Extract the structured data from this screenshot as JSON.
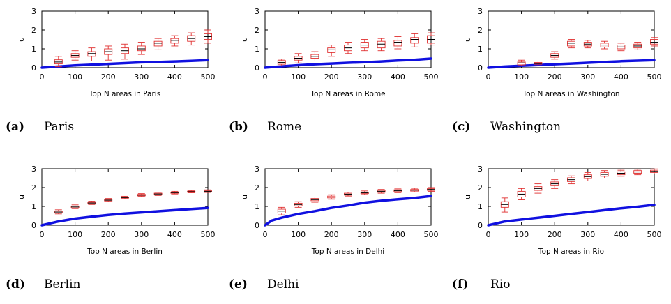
{
  "chart_data": [
    {
      "type": "box-line",
      "caption_label": "(a)",
      "caption_text": "Paris",
      "xlabel": "Top N areas in Paris",
      "ylabel": "u",
      "xlim": [
        0,
        500
      ],
      "ylim": [
        0,
        3
      ],
      "xticks": [
        "0",
        "100",
        "200",
        "300",
        "400",
        "500"
      ],
      "yticks": [
        "0",
        "1",
        "2",
        "3"
      ],
      "line": {
        "x": [
          0,
          50,
          100,
          150,
          200,
          250,
          300,
          350,
          400,
          450,
          500
        ],
        "y": [
          0,
          0.06,
          0.12,
          0.16,
          0.2,
          0.24,
          0.28,
          0.3,
          0.33,
          0.36,
          0.4
        ]
      },
      "boxes": [
        {
          "x": 50,
          "wl": 0.05,
          "q1": 0.2,
          "med": 0.3,
          "q3": 0.42,
          "wh": 0.6
        },
        {
          "x": 100,
          "wl": 0.4,
          "q1": 0.55,
          "med": 0.65,
          "q3": 0.75,
          "wh": 0.9
        },
        {
          "x": 150,
          "wl": 0.35,
          "q1": 0.6,
          "med": 0.75,
          "q3": 0.85,
          "wh": 1.05
        },
        {
          "x": 200,
          "wl": 0.4,
          "q1": 0.7,
          "med": 0.85,
          "q3": 1.0,
          "wh": 1.15
        },
        {
          "x": 250,
          "wl": 0.45,
          "q1": 0.75,
          "med": 0.9,
          "q3": 1.05,
          "wh": 1.25
        },
        {
          "x": 300,
          "wl": 0.7,
          "q1": 0.9,
          "med": 1.0,
          "q3": 1.15,
          "wh": 1.35
        },
        {
          "x": 350,
          "wl": 0.95,
          "q1": 1.15,
          "med": 1.3,
          "q3": 1.4,
          "wh": 1.55
        },
        {
          "x": 400,
          "wl": 1.15,
          "q1": 1.3,
          "med": 1.45,
          "q3": 1.55,
          "wh": 1.7
        },
        {
          "x": 450,
          "wl": 1.2,
          "q1": 1.4,
          "med": 1.55,
          "q3": 1.7,
          "wh": 1.85
        },
        {
          "x": 500,
          "wl": 1.3,
          "q1": 1.5,
          "med": 1.65,
          "q3": 1.8,
          "wh": 2.0
        }
      ]
    },
    {
      "type": "box-line",
      "caption_label": "(b)",
      "caption_text": "Rome",
      "xlabel": "Top N areas in Rome",
      "ylabel": "u",
      "xlim": [
        0,
        500
      ],
      "ylim": [
        0,
        3
      ],
      "xticks": [
        "0",
        "100",
        "200",
        "300",
        "400",
        "500"
      ],
      "yticks": [
        "0",
        "1",
        "2",
        "3"
      ],
      "line": {
        "x": [
          0,
          50,
          100,
          150,
          200,
          250,
          300,
          350,
          400,
          450,
          500
        ],
        "y": [
          0,
          0.07,
          0.13,
          0.18,
          0.22,
          0.26,
          0.29,
          0.33,
          0.38,
          0.42,
          0.48
        ]
      },
      "boxes": [
        {
          "x": 50,
          "wl": 0.1,
          "q1": 0.18,
          "med": 0.28,
          "q3": 0.38,
          "wh": 0.45
        },
        {
          "x": 100,
          "wl": 0.25,
          "q1": 0.4,
          "med": 0.5,
          "q3": 0.6,
          "wh": 0.75
        },
        {
          "x": 150,
          "wl": 0.35,
          "q1": 0.5,
          "med": 0.6,
          "q3": 0.7,
          "wh": 0.85
        },
        {
          "x": 200,
          "wl": 0.6,
          "q1": 0.8,
          "med": 0.95,
          "q3": 1.05,
          "wh": 1.2
        },
        {
          "x": 250,
          "wl": 0.75,
          "q1": 0.9,
          "med": 1.05,
          "q3": 1.2,
          "wh": 1.35
        },
        {
          "x": 300,
          "wl": 0.9,
          "q1": 1.05,
          "med": 1.2,
          "q3": 1.35,
          "wh": 1.5
        },
        {
          "x": 350,
          "wl": 0.9,
          "q1": 1.05,
          "med": 1.25,
          "q3": 1.4,
          "wh": 1.55
        },
        {
          "x": 400,
          "wl": 1.0,
          "q1": 1.15,
          "med": 1.35,
          "q3": 1.45,
          "wh": 1.65
        },
        {
          "x": 450,
          "wl": 1.1,
          "q1": 1.3,
          "med": 1.5,
          "q3": 1.6,
          "wh": 1.8
        },
        {
          "x": 500,
          "wl": 1.2,
          "q1": 1.3,
          "med": 1.5,
          "q3": 1.7,
          "wh": 1.85
        }
      ]
    },
    {
      "type": "box-line",
      "caption_label": "(c)",
      "caption_text": "Washington",
      "xlabel": "Top N areas in Washington",
      "ylabel": "u",
      "xlim": [
        0,
        500
      ],
      "ylim": [
        0,
        3
      ],
      "xticks": [
        "0",
        "100",
        "200",
        "300",
        "400",
        "500"
      ],
      "yticks": [
        "0",
        "1",
        "2",
        "3"
      ],
      "line": {
        "x": [
          0,
          50,
          100,
          150,
          200,
          250,
          300,
          350,
          400,
          450,
          500
        ],
        "y": [
          0,
          0.06,
          0.1,
          0.14,
          0.18,
          0.22,
          0.26,
          0.3,
          0.34,
          0.37,
          0.4
        ]
      },
      "boxes": [
        {
          "x": 100,
          "wl": 0.1,
          "q1": 0.15,
          "med": 0.25,
          "q3": 0.3,
          "wh": 0.4
        },
        {
          "x": 150,
          "wl": 0.1,
          "q1": 0.18,
          "med": 0.22,
          "q3": 0.28,
          "wh": 0.35
        },
        {
          "x": 200,
          "wl": 0.45,
          "q1": 0.55,
          "med": 0.65,
          "q3": 0.75,
          "wh": 0.85
        },
        {
          "x": 250,
          "wl": 1.05,
          "q1": 1.15,
          "med": 1.3,
          "q3": 1.4,
          "wh": 1.5
        },
        {
          "x": 300,
          "wl": 1.05,
          "q1": 1.15,
          "med": 1.25,
          "q3": 1.35,
          "wh": 1.45
        },
        {
          "x": 350,
          "wl": 1.0,
          "q1": 1.1,
          "med": 1.2,
          "q3": 1.3,
          "wh": 1.4
        },
        {
          "x": 400,
          "wl": 0.9,
          "q1": 1.0,
          "med": 1.1,
          "q3": 1.2,
          "wh": 1.3
        },
        {
          "x": 450,
          "wl": 0.95,
          "q1": 1.05,
          "med": 1.15,
          "q3": 1.25,
          "wh": 1.35
        },
        {
          "x": 500,
          "wl": 1.15,
          "q1": 1.25,
          "med": 1.35,
          "q3": 1.5,
          "wh": 1.6
        }
      ]
    },
    {
      "type": "box-line",
      "caption_label": "(d)",
      "caption_text": "Berlin",
      "xlabel": "Top N areas in Berlin",
      "ylabel": "u",
      "xlim": [
        0,
        500
      ],
      "ylim": [
        0,
        3
      ],
      "xticks": [
        "0",
        "100",
        "200",
        "300",
        "400",
        "500"
      ],
      "yticks": [
        "0",
        "1",
        "2",
        "3"
      ],
      "line": {
        "x": [
          0,
          50,
          100,
          150,
          200,
          250,
          300,
          350,
          400,
          450,
          500
        ],
        "y": [
          0,
          0.2,
          0.35,
          0.45,
          0.55,
          0.62,
          0.68,
          0.74,
          0.8,
          0.86,
          0.92
        ]
      },
      "boxes": [
        {
          "x": 50,
          "wl": 0.6,
          "q1": 0.65,
          "med": 0.7,
          "q3": 0.75,
          "wh": 0.82
        },
        {
          "x": 100,
          "wl": 0.88,
          "q1": 0.92,
          "med": 0.97,
          "q3": 1.02,
          "wh": 1.08
        },
        {
          "x": 150,
          "wl": 1.1,
          "q1": 1.14,
          "med": 1.18,
          "q3": 1.22,
          "wh": 1.28
        },
        {
          "x": 200,
          "wl": 1.25,
          "q1": 1.29,
          "med": 1.33,
          "q3": 1.37,
          "wh": 1.42
        },
        {
          "x": 250,
          "wl": 1.4,
          "q1": 1.44,
          "med": 1.47,
          "q3": 1.5,
          "wh": 1.54
        },
        {
          "x": 300,
          "wl": 1.52,
          "q1": 1.56,
          "med": 1.6,
          "q3": 1.64,
          "wh": 1.68
        },
        {
          "x": 350,
          "wl": 1.58,
          "q1": 1.62,
          "med": 1.66,
          "q3": 1.7,
          "wh": 1.75
        },
        {
          "x": 400,
          "wl": 1.66,
          "q1": 1.7,
          "med": 1.73,
          "q3": 1.76,
          "wh": 1.8
        },
        {
          "x": 450,
          "wl": 1.72,
          "q1": 1.75,
          "med": 1.78,
          "q3": 1.81,
          "wh": 1.85
        },
        {
          "x": 500,
          "wl": 1.74,
          "q1": 1.77,
          "med": 1.8,
          "q3": 1.83,
          "wh": 1.88
        }
      ]
    },
    {
      "type": "box-line",
      "caption_label": "(e)",
      "caption_text": "Delhi",
      "xlabel": "Top N areas in Delhi",
      "ylabel": "u",
      "xlim": [
        0,
        500
      ],
      "ylim": [
        0,
        3
      ],
      "xticks": [
        "0",
        "100",
        "200",
        "300",
        "400",
        "500"
      ],
      "yticks": [
        "0",
        "1",
        "2",
        "3"
      ],
      "line": {
        "x": [
          0,
          20,
          50,
          100,
          150,
          200,
          250,
          300,
          350,
          400,
          450,
          500
        ],
        "y": [
          0,
          0.25,
          0.4,
          0.6,
          0.75,
          0.92,
          1.05,
          1.2,
          1.3,
          1.38,
          1.45,
          1.55
        ]
      },
      "boxes": [
        {
          "x": 50,
          "wl": 0.55,
          "q1": 0.65,
          "med": 0.75,
          "q3": 0.85,
          "wh": 0.95
        },
        {
          "x": 100,
          "wl": 0.95,
          "q1": 1.03,
          "med": 1.1,
          "q3": 1.17,
          "wh": 1.25
        },
        {
          "x": 150,
          "wl": 1.22,
          "q1": 1.3,
          "med": 1.36,
          "q3": 1.42,
          "wh": 1.5
        },
        {
          "x": 200,
          "wl": 1.38,
          "q1": 1.45,
          "med": 1.5,
          "q3": 1.55,
          "wh": 1.62
        },
        {
          "x": 250,
          "wl": 1.55,
          "q1": 1.6,
          "med": 1.65,
          "q3": 1.7,
          "wh": 1.76
        },
        {
          "x": 300,
          "wl": 1.63,
          "q1": 1.68,
          "med": 1.72,
          "q3": 1.76,
          "wh": 1.82
        },
        {
          "x": 350,
          "wl": 1.7,
          "q1": 1.75,
          "med": 1.8,
          "q3": 1.85,
          "wh": 1.9
        },
        {
          "x": 400,
          "wl": 1.73,
          "q1": 1.78,
          "med": 1.83,
          "q3": 1.88,
          "wh": 1.93
        },
        {
          "x": 450,
          "wl": 1.76,
          "q1": 1.81,
          "med": 1.86,
          "q3": 1.9,
          "wh": 1.96
        },
        {
          "x": 500,
          "wl": 1.8,
          "q1": 1.85,
          "med": 1.9,
          "q3": 1.94,
          "wh": 2.0
        }
      ]
    },
    {
      "type": "box-line",
      "caption_label": "(f)",
      "caption_text": "Rio",
      "xlabel": "Top N areas in Rio",
      "ylabel": "u",
      "xlim": [
        0,
        500
      ],
      "ylim": [
        0,
        3
      ],
      "xticks": [
        "0",
        "100",
        "200",
        "300",
        "400",
        "500"
      ],
      "yticks": [
        "0",
        "1",
        "2",
        "3"
      ],
      "line": {
        "x": [
          0,
          50,
          100,
          150,
          200,
          250,
          300,
          350,
          400,
          450,
          500
        ],
        "y": [
          0,
          0.2,
          0.3,
          0.4,
          0.5,
          0.6,
          0.7,
          0.8,
          0.9,
          0.98,
          1.08
        ]
      },
      "boxes": [
        {
          "x": 50,
          "wl": 0.7,
          "q1": 0.95,
          "med": 1.1,
          "q3": 1.25,
          "wh": 1.45
        },
        {
          "x": 100,
          "wl": 1.35,
          "q1": 1.5,
          "med": 1.65,
          "q3": 1.8,
          "wh": 1.95
        },
        {
          "x": 150,
          "wl": 1.7,
          "q1": 1.85,
          "med": 1.95,
          "q3": 2.05,
          "wh": 2.2
        },
        {
          "x": 200,
          "wl": 1.95,
          "q1": 2.1,
          "med": 2.2,
          "q3": 2.3,
          "wh": 2.42
        },
        {
          "x": 250,
          "wl": 2.2,
          "q1": 2.32,
          "med": 2.42,
          "q3": 2.52,
          "wh": 2.62
        },
        {
          "x": 300,
          "wl": 2.35,
          "q1": 2.48,
          "med": 2.58,
          "q3": 2.68,
          "wh": 2.8
        },
        {
          "x": 350,
          "wl": 2.5,
          "q1": 2.6,
          "med": 2.7,
          "q3": 2.8,
          "wh": 2.9
        },
        {
          "x": 400,
          "wl": 2.6,
          "q1": 2.68,
          "med": 2.76,
          "q3": 2.84,
          "wh": 2.92
        },
        {
          "x": 450,
          "wl": 2.68,
          "q1": 2.76,
          "med": 2.83,
          "q3": 2.9,
          "wh": 2.97
        },
        {
          "x": 500,
          "wl": 2.72,
          "q1": 2.8,
          "med": 2.86,
          "q3": 2.92,
          "wh": 2.99
        }
      ]
    }
  ],
  "colors": {
    "line": "#1010e0",
    "box": "#e03030",
    "median": "#000000",
    "axis": "#000000"
  }
}
